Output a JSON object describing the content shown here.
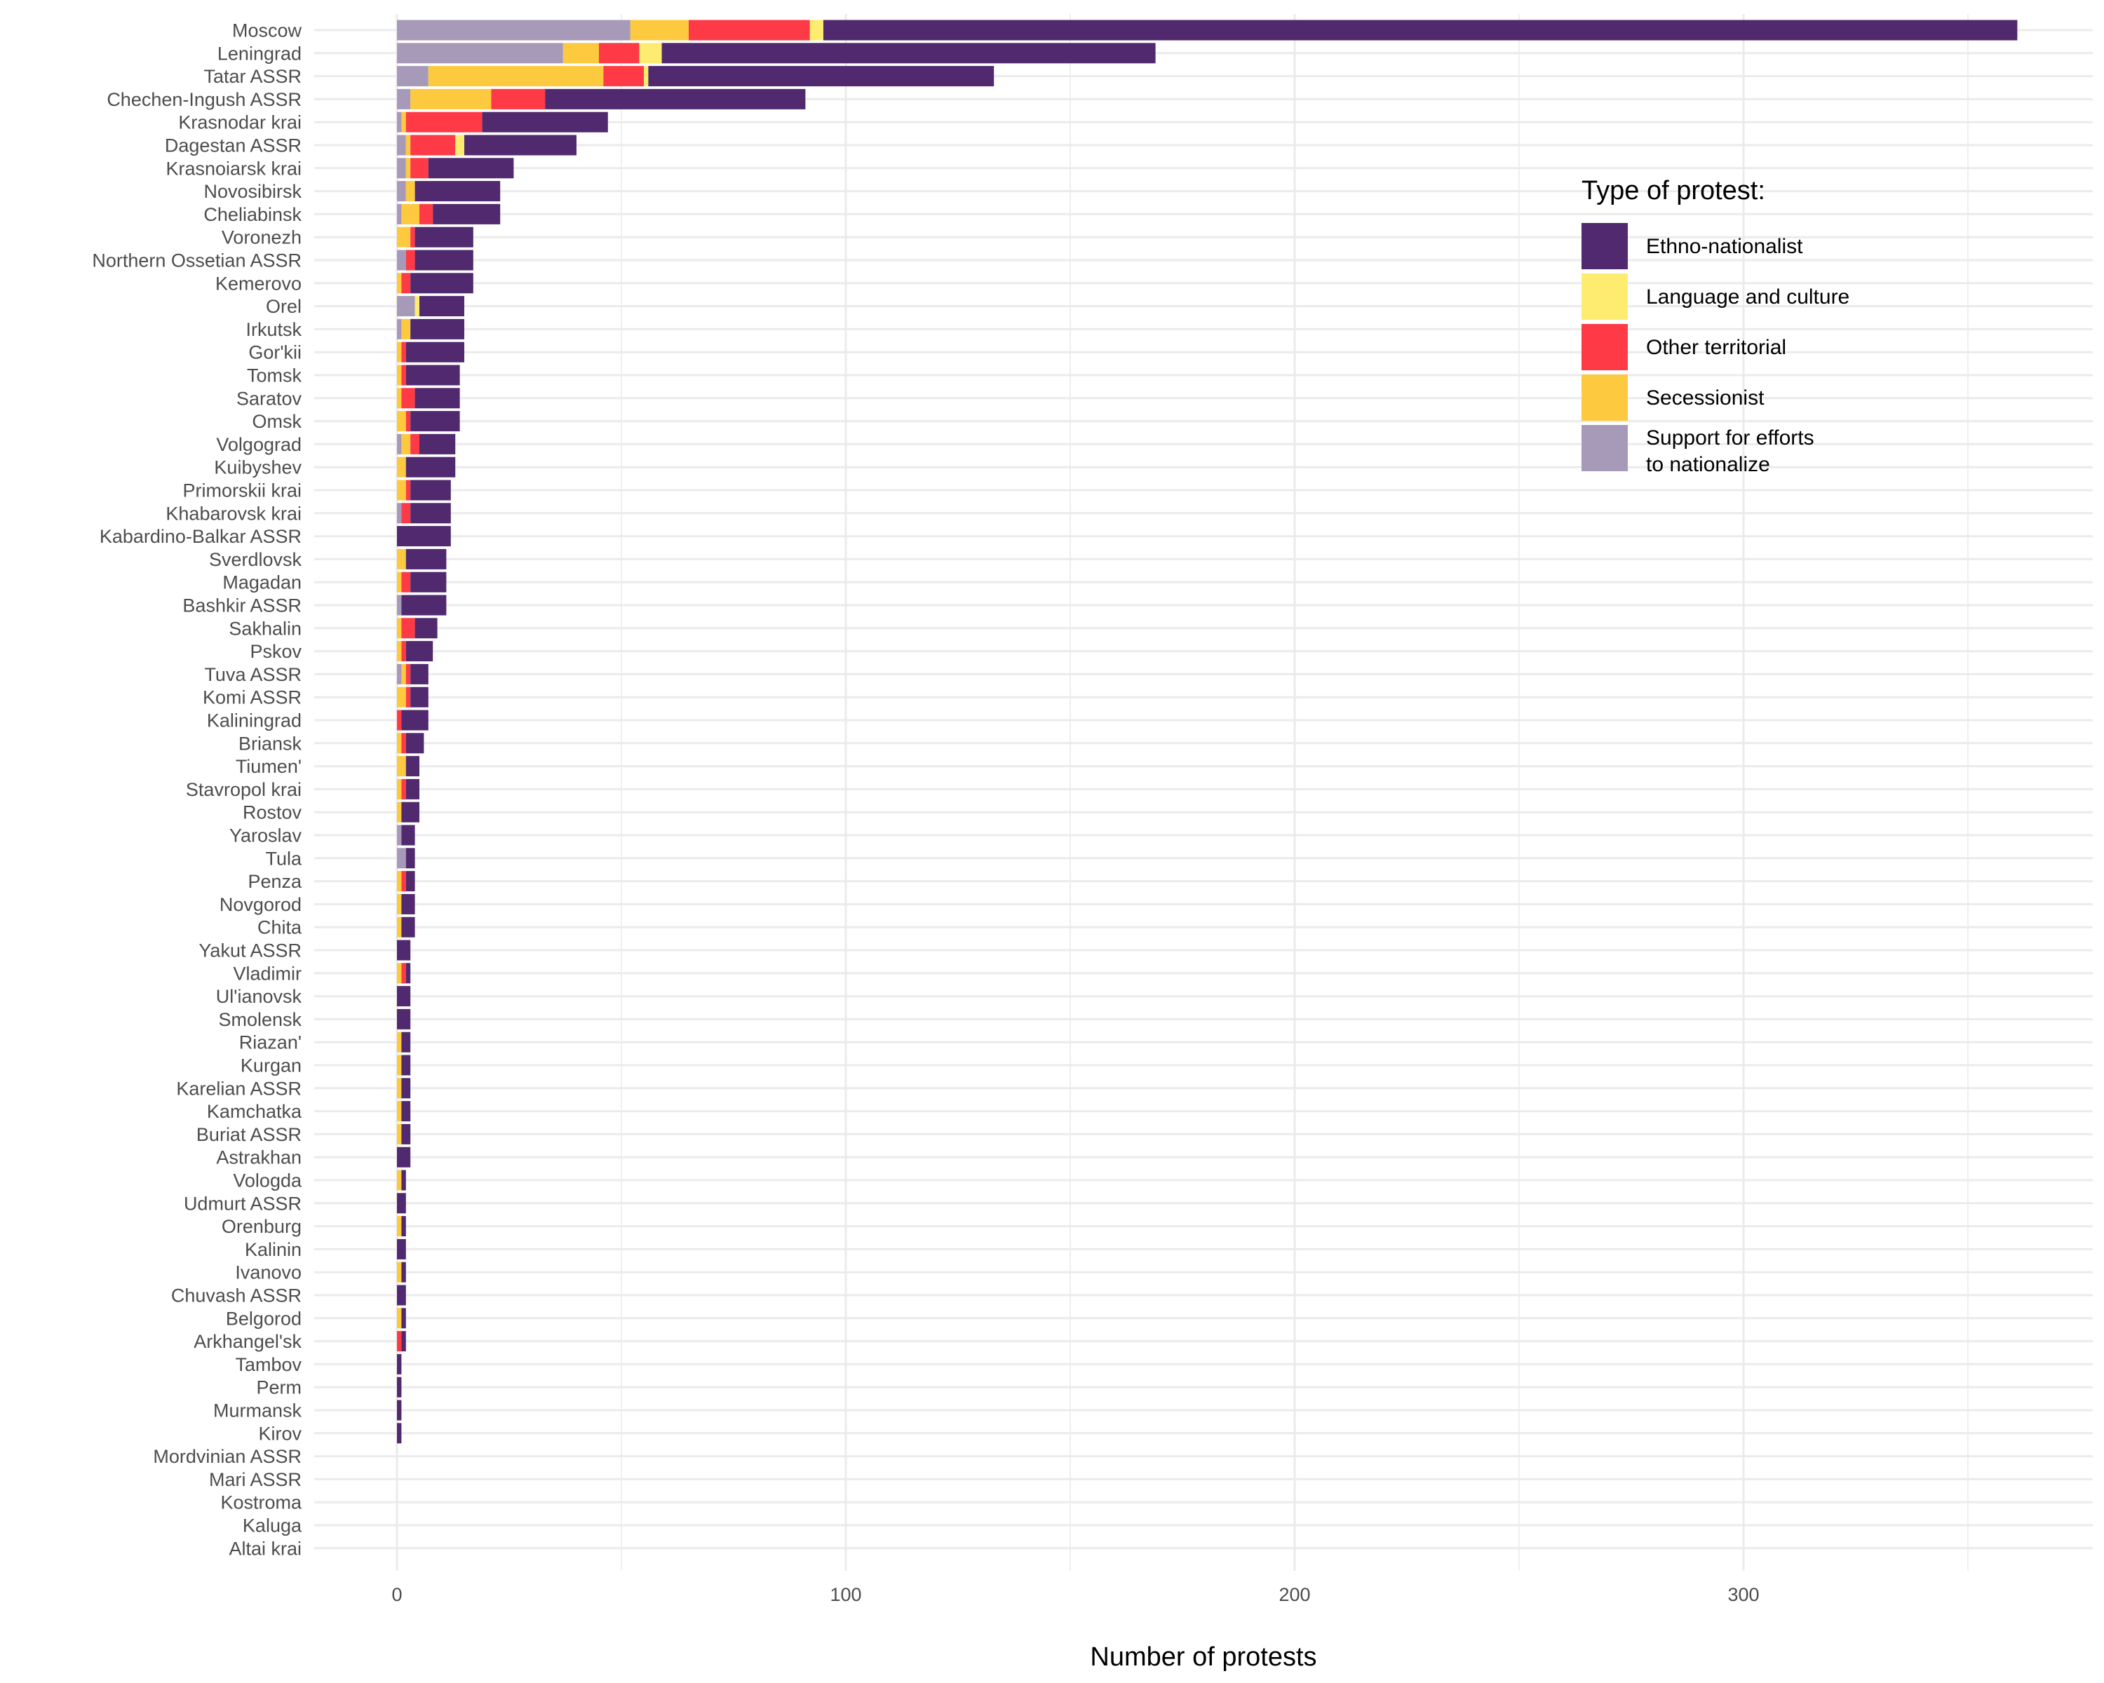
{
  "chart_data": {
    "type": "bar",
    "orientation": "horizontal",
    "stacked": true,
    "xlabel": "Number of protests",
    "xlim": [
      -16,
      381
    ],
    "xticks": [
      0,
      100,
      200,
      300
    ],
    "grid": true,
    "legend": {
      "title": "Type of protest:",
      "placement": "right"
    },
    "series": [
      {
        "name": "Support for efforts\nto nationalize",
        "color": "#a79ab8"
      },
      {
        "name": "Secessionist",
        "color": "#fcc93f"
      },
      {
        "name": "Other territorial",
        "color": "#fd3a46"
      },
      {
        "name": "Language and culture",
        "color": "#fdec70"
      },
      {
        "name": "Ethno-nationalist",
        "color": "#50296e"
      }
    ],
    "legend_order": [
      "Ethno-nationalist",
      "Language and culture",
      "Other territorial",
      "Secessionist",
      "Support for efforts\nto nationalize"
    ],
    "categories": [
      "Moscow",
      "Leningrad",
      "Tatar ASSR",
      "Chechen-Ingush ASSR",
      "Krasnodar krai",
      "Dagestan ASSR",
      "Krasnoiarsk krai",
      "Novosibirsk",
      "Cheliabinsk",
      "Voronezh",
      "Northern Ossetian ASSR",
      "Kemerovo",
      "Orel",
      "Irkutsk",
      "Gor'kii",
      "Tomsk",
      "Saratov",
      "Omsk",
      "Volgograd",
      "Kuibyshev",
      "Primorskii krai",
      "Khabarovsk krai",
      "Kabardino-Balkar ASSR",
      "Sverdlovsk",
      "Magadan",
      "Bashkir ASSR",
      "Sakhalin",
      "Pskov",
      "Tuva ASSR",
      "Komi ASSR",
      "Kaliningrad",
      "Briansk",
      "Tiumen'",
      "Stavropol krai",
      "Rostov",
      "Yaroslav",
      "Tula",
      "Penza",
      "Novgorod",
      "Chita",
      "Yakut ASSR",
      "Vladimir",
      "Ul'ianovsk",
      "Smolensk",
      "Riazan'",
      "Kurgan",
      "Karelian ASSR",
      "Kamchatka",
      "Buriat ASSR",
      "Astrakhan",
      "Vologda",
      "Udmurt ASSR",
      "Orenburg",
      "Kalinin",
      "Ivanovo",
      "Chuvash ASSR",
      "Belgorod",
      "Arkhangel'sk",
      "Tambov",
      "Perm",
      "Murmansk",
      "Kirov",
      "Mordvinian ASSR",
      "Mari ASSR",
      "Kostroma",
      "Kaluga",
      "Altai krai"
    ],
    "values": [
      [
        52,
        13,
        27,
        3,
        266
      ],
      [
        37,
        8,
        9,
        5,
        110
      ],
      [
        7,
        39,
        9,
        1,
        77
      ],
      [
        3,
        18,
        12,
        0,
        58
      ],
      [
        1,
        1,
        17,
        0,
        28
      ],
      [
        2,
        1,
        10,
        2,
        25
      ],
      [
        2,
        1,
        4,
        0,
        19
      ],
      [
        2,
        2,
        0,
        0,
        19
      ],
      [
        1,
        4,
        3,
        0,
        15
      ],
      [
        0,
        3,
        1,
        0,
        13
      ],
      [
        2,
        0,
        2,
        0,
        13
      ],
      [
        0,
        1,
        2,
        0,
        14
      ],
      [
        4,
        0,
        0,
        1,
        10
      ],
      [
        1,
        2,
        0,
        0,
        12
      ],
      [
        0,
        1,
        1,
        0,
        13
      ],
      [
        0,
        1,
        1,
        0,
        12
      ],
      [
        0,
        1,
        3,
        0,
        10
      ],
      [
        0,
        2,
        1,
        0,
        11
      ],
      [
        1,
        2,
        2,
        0,
        8
      ],
      [
        0,
        2,
        0,
        0,
        11
      ],
      [
        0,
        2,
        1,
        0,
        9
      ],
      [
        1,
        0,
        2,
        0,
        9
      ],
      [
        0,
        0,
        0,
        0,
        12
      ],
      [
        0,
        2,
        0,
        0,
        9
      ],
      [
        0,
        1,
        2,
        0,
        8
      ],
      [
        1,
        0,
        0,
        0,
        10
      ],
      [
        0,
        1,
        3,
        0,
        5
      ],
      [
        0,
        1,
        1,
        0,
        6
      ],
      [
        1,
        1,
        1,
        0,
        4
      ],
      [
        0,
        2,
        1,
        0,
        4
      ],
      [
        0,
        0,
        1,
        0,
        6
      ],
      [
        0,
        1,
        1,
        0,
        4
      ],
      [
        0,
        2,
        0,
        0,
        3
      ],
      [
        0,
        1,
        1,
        0,
        3
      ],
      [
        0,
        1,
        0,
        0,
        4
      ],
      [
        1,
        0,
        0,
        0,
        3
      ],
      [
        2,
        0,
        0,
        0,
        2
      ],
      [
        0,
        1,
        1,
        0,
        2
      ],
      [
        0,
        1,
        0,
        0,
        3
      ],
      [
        0,
        1,
        0,
        0,
        3
      ],
      [
        0,
        0,
        0,
        0,
        3
      ],
      [
        0,
        1,
        1,
        0,
        1
      ],
      [
        0,
        0,
        0,
        0,
        3
      ],
      [
        0,
        0,
        0,
        0,
        3
      ],
      [
        0,
        1,
        0,
        0,
        2
      ],
      [
        0,
        1,
        0,
        0,
        2
      ],
      [
        0,
        1,
        0,
        0,
        2
      ],
      [
        0,
        1,
        0,
        0,
        2
      ],
      [
        0,
        1,
        0,
        0,
        2
      ],
      [
        0,
        0,
        0,
        0,
        3
      ],
      [
        0,
        1,
        0,
        0,
        1
      ],
      [
        0,
        0,
        0,
        0,
        2
      ],
      [
        0,
        1,
        0,
        0,
        1
      ],
      [
        0,
        0,
        0,
        0,
        2
      ],
      [
        0,
        1,
        0,
        0,
        1
      ],
      [
        0,
        0,
        0,
        0,
        2
      ],
      [
        0,
        1,
        0,
        0,
        1
      ],
      [
        0,
        0,
        1,
        0,
        1
      ],
      [
        0,
        0,
        0,
        0,
        1
      ],
      [
        0,
        0,
        0,
        0,
        1
      ],
      [
        0,
        0,
        0,
        0,
        1
      ],
      [
        0,
        0,
        0,
        0,
        1
      ],
      [
        0,
        0,
        0,
        0,
        0
      ],
      [
        0,
        0,
        0,
        0,
        0
      ],
      [
        0,
        0,
        0,
        0,
        0
      ],
      [
        0,
        0,
        0,
        0,
        0
      ],
      [
        0,
        0,
        0,
        0,
        0
      ]
    ]
  }
}
